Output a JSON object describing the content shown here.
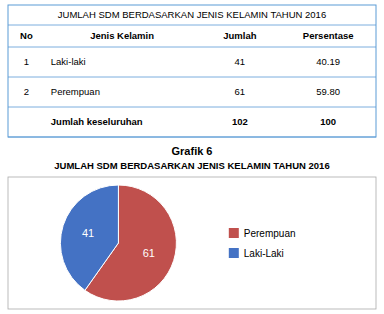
{
  "chart_data": [
    {
      "type": "table",
      "title": "JUMLAH SDM BERDASARKAN JENIS KELAMIN TAHUN 2016",
      "columns": [
        "No",
        "Jenis Kelamin",
        "Jumlah",
        "Persentase"
      ],
      "rows": [
        [
          "1",
          "Laki-laki",
          "41",
          "40.19"
        ],
        [
          "2",
          "Perempuan",
          "61",
          "59.80"
        ],
        [
          null,
          "Jumlah keseluruhan",
          "102",
          "100"
        ]
      ]
    },
    {
      "type": "pie",
      "title": "Grafik 6",
      "subtitle": "JUMLAH SDM BERDASARKAN JENIS KELAMIN TAHUN 2016",
      "categories": [
        "Perempuan",
        "Laki-Laki"
      ],
      "values": [
        61,
        41
      ],
      "colors": [
        "#c0504d",
        "#4472c4"
      ],
      "data_labels": true,
      "legend": "right"
    }
  ]
}
